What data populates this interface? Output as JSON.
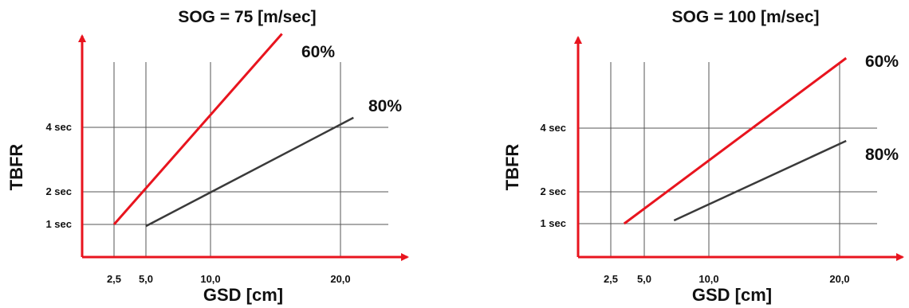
{
  "chart_data": [
    {
      "type": "line",
      "title": "SOG = 75 [m/sec]",
      "xlabel": "GSD [cm]",
      "ylabel": "TBFR",
      "x_ticks": [
        {
          "value": 2.5,
          "label": "2,5"
        },
        {
          "value": 5.0,
          "label": "5,0"
        },
        {
          "value": 10.0,
          "label": "10,0"
        },
        {
          "value": 20.0,
          "label": "20,0"
        }
      ],
      "y_ticks": [
        {
          "value": 1,
          "label": "1 sec"
        },
        {
          "value": 2,
          "label": "2 sec"
        },
        {
          "value": 4,
          "label": "4 sec"
        }
      ],
      "grid": true,
      "series": [
        {
          "name": "60%",
          "color": "#e8141e",
          "x": [
            2.5,
            15.5
          ],
          "y": [
            1.0,
            6.9
          ]
        },
        {
          "name": "80%",
          "color": "#3a3a3a",
          "x": [
            5.0,
            21.0
          ],
          "y": [
            0.95,
            4.3
          ]
        }
      ]
    },
    {
      "type": "line",
      "title": "SOG = 100 [m/sec]",
      "xlabel": "GSD [cm]",
      "ylabel": "TBFR",
      "x_ticks": [
        {
          "value": 2.5,
          "label": "2,5"
        },
        {
          "value": 5.0,
          "label": "5,0"
        },
        {
          "value": 10.0,
          "label": "10,0"
        },
        {
          "value": 20.0,
          "label": "20,0"
        }
      ],
      "y_ticks": [
        {
          "value": 1,
          "label": "1 sec"
        },
        {
          "value": 2,
          "label": "2 sec"
        },
        {
          "value": 4,
          "label": "4 sec"
        }
      ],
      "grid": true,
      "series": [
        {
          "name": "60%",
          "color": "#e8141e",
          "x": [
            3.5,
            20.5
          ],
          "y": [
            1.0,
            6.2
          ]
        },
        {
          "name": "80%",
          "color": "#3a3a3a",
          "x": [
            7.3,
            20.5
          ],
          "y": [
            1.1,
            3.6
          ]
        }
      ]
    }
  ]
}
